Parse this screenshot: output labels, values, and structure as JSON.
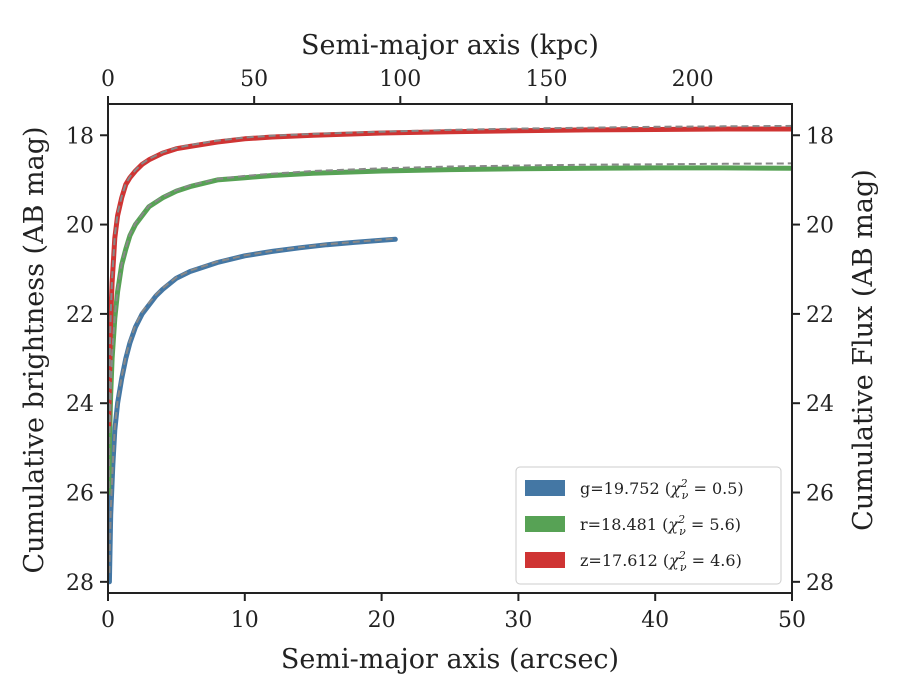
{
  "chart_data": {
    "type": "line",
    "xlabel": "Semi-major axis (arcsec)",
    "ylabel": "Cumulative brightness (AB mag)",
    "x2label": "Semi-major axis (kpc)",
    "y2label": "Cumulative Flux (AB mag)",
    "xlim": [
      0,
      50
    ],
    "ylim": [
      28.25,
      17.3
    ],
    "x2lim": [
      0,
      234
    ],
    "xticks": [
      "0",
      "10",
      "20",
      "30",
      "40",
      "50"
    ],
    "yticks": [
      "18",
      "20",
      "22",
      "24",
      "26",
      "28"
    ],
    "x2ticks": [
      "0",
      "50",
      "100",
      "150",
      "200"
    ],
    "legend_position": "lower-right",
    "series": [
      {
        "name": "g",
        "legend_prefix": "g=19.752 (",
        "chi_label": "χ",
        "chi_sub": "ν",
        "chi_sup": "2",
        "chi_value": " = 0.5)",
        "color": "#4477a4",
        "x": [
          0.1,
          0.2,
          0.35,
          0.5,
          0.7,
          1.0,
          1.3,
          1.6,
          2.0,
          2.5,
          3.0,
          3.5,
          4.0,
          5.0,
          6.0,
          7.0,
          8.0,
          10.0,
          12.0,
          14.0,
          16.0,
          18.0,
          20.0,
          21.0
        ],
        "y": [
          28.0,
          26.5,
          25.4,
          24.6,
          24.0,
          23.45,
          23.0,
          22.65,
          22.3,
          22.0,
          21.8,
          21.6,
          21.45,
          21.2,
          21.05,
          20.95,
          20.85,
          20.7,
          20.6,
          20.52,
          20.45,
          20.4,
          20.35,
          20.33
        ]
      },
      {
        "name": "r",
        "legend_prefix": "r=18.481 (",
        "chi_label": "χ",
        "chi_sub": "ν",
        "chi_sup": "2",
        "chi_value": " = 5.6)",
        "color": "#57a255",
        "x": [
          0.05,
          0.1,
          0.2,
          0.3,
          0.5,
          0.7,
          1.0,
          1.3,
          1.6,
          2.0,
          2.5,
          3.0,
          4.0,
          5.0,
          6.0,
          8.0,
          10.0,
          12.0,
          15.0,
          20.0,
          25.0,
          30.0,
          35.0,
          40.0,
          45.0,
          50.0
        ],
        "y": [
          26.0,
          24.9,
          23.8,
          23.0,
          22.1,
          21.5,
          20.9,
          20.55,
          20.25,
          20.0,
          19.8,
          19.6,
          19.4,
          19.25,
          19.15,
          19.0,
          18.95,
          18.9,
          18.85,
          18.8,
          18.77,
          18.75,
          18.74,
          18.73,
          18.73,
          18.74
        ]
      },
      {
        "name": "z",
        "legend_prefix": "z=17.612 (",
        "chi_label": "χ",
        "chi_sub": "ν",
        "chi_sup": "2",
        "chi_value": " = 4.6)",
        "color": "#cf3433",
        "x": [
          0.05,
          0.1,
          0.15,
          0.2,
          0.3,
          0.5,
          0.7,
          1.0,
          1.3,
          1.6,
          2.0,
          2.5,
          3.0,
          4.0,
          5.0,
          6.0,
          8.0,
          10.0,
          12.0,
          15.0,
          20.0,
          25.0,
          30.0,
          35.0,
          40.0,
          45.0,
          50.0
        ],
        "y": [
          24.5,
          23.5,
          22.7,
          22.1,
          21.3,
          20.3,
          19.8,
          19.4,
          19.1,
          18.95,
          18.8,
          18.65,
          18.55,
          18.4,
          18.3,
          18.25,
          18.15,
          18.08,
          18.04,
          18.0,
          17.95,
          17.92,
          17.9,
          17.88,
          17.87,
          17.86,
          17.86
        ]
      }
    ],
    "models": [
      {
        "series": "g",
        "color": "#888888",
        "x": [
          0.1,
          0.2,
          0.35,
          0.5,
          0.7,
          1.0,
          1.3,
          1.6,
          2.0,
          2.5,
          3.0,
          3.5,
          4.0,
          5.0,
          6.0,
          7.0,
          8.0,
          10.0,
          12.0,
          14.0,
          16.0,
          18.0,
          20.0,
          21.0
        ],
        "y": [
          27.8,
          26.4,
          25.35,
          24.55,
          23.95,
          23.4,
          22.95,
          22.6,
          22.25,
          21.95,
          21.75,
          21.57,
          21.42,
          21.18,
          21.03,
          20.93,
          20.83,
          20.69,
          20.59,
          20.51,
          20.44,
          20.39,
          20.34,
          20.31
        ]
      },
      {
        "series": "r",
        "color": "#888888",
        "x": [
          0.05,
          0.1,
          0.2,
          0.3,
          0.5,
          0.7,
          1.0,
          1.3,
          1.6,
          2.0,
          2.5,
          3.0,
          4.0,
          5.0,
          6.0,
          8.0,
          10.0,
          12.0,
          15.0,
          20.0,
          25.0,
          30.0,
          35.0,
          40.0,
          45.0,
          50.0
        ],
        "y": [
          25.9,
          24.8,
          23.7,
          22.9,
          22.05,
          21.45,
          20.87,
          20.52,
          20.22,
          19.97,
          19.77,
          19.58,
          19.38,
          19.23,
          19.12,
          18.98,
          18.91,
          18.86,
          18.8,
          18.74,
          18.7,
          18.68,
          18.66,
          18.65,
          18.64,
          18.63
        ]
      },
      {
        "series": "z",
        "color": "#888888",
        "x": [
          0.05,
          0.1,
          0.15,
          0.2,
          0.3,
          0.5,
          0.7,
          1.0,
          1.3,
          1.6,
          2.0,
          2.5,
          3.0,
          4.0,
          5.0,
          6.0,
          8.0,
          10.0,
          12.0,
          15.0,
          20.0,
          25.0,
          30.0,
          35.0,
          40.0,
          45.0,
          50.0
        ],
        "y": [
          24.4,
          23.4,
          22.6,
          22.0,
          21.2,
          20.25,
          19.75,
          19.37,
          19.08,
          18.93,
          18.78,
          18.63,
          18.53,
          18.38,
          18.28,
          18.22,
          18.12,
          18.05,
          18.01,
          17.97,
          17.92,
          17.88,
          17.85,
          17.83,
          17.81,
          17.8,
          17.79
        ]
      }
    ]
  }
}
